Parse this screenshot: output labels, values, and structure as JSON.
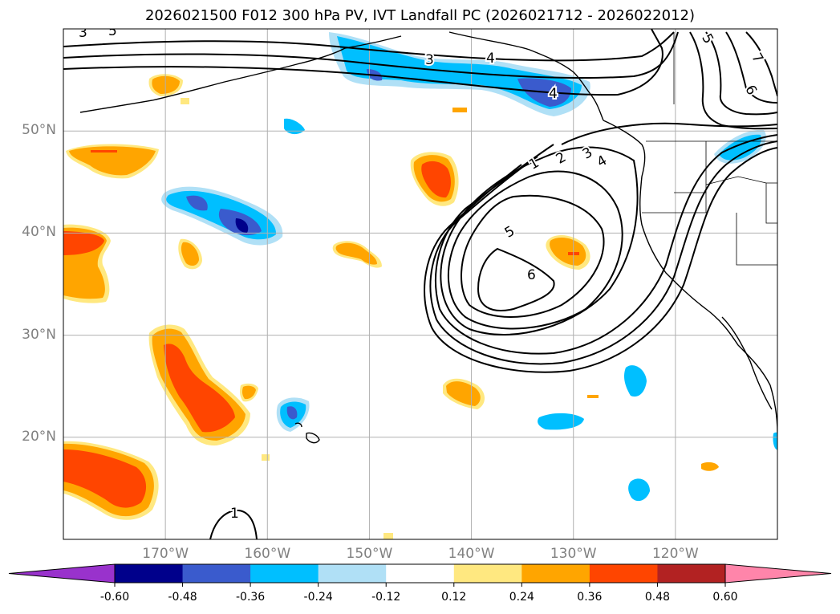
{
  "title": "2026021500 F012 300 hPa PV, IVT Landfall PC (2026021712 - 2026022012)",
  "map": {
    "projection": "PlateCarree",
    "extent_lon": [
      -180,
      -110
    ],
    "extent_lat": [
      10,
      60
    ],
    "lat_ticks": [
      {
        "value": 50,
        "label": "50°N"
      },
      {
        "value": 40,
        "label": "40°N"
      },
      {
        "value": 30,
        "label": "30°N"
      },
      {
        "value": 20,
        "label": "20°N"
      }
    ],
    "lon_ticks": [
      {
        "value": -170,
        "label": "170°W"
      },
      {
        "value": -160,
        "label": "160°W"
      },
      {
        "value": -150,
        "label": "150°W"
      },
      {
        "value": -140,
        "label": "140°W"
      },
      {
        "value": -130,
        "label": "130°W"
      },
      {
        "value": -120,
        "label": "120°W"
      }
    ],
    "gridlines": true,
    "contour_labels": [
      "1",
      "2",
      "3",
      "4",
      "5",
      "6",
      "7",
      "3",
      "4",
      "5",
      "6",
      "1",
      "3",
      "5",
      "4"
    ],
    "fill_field": "300 hPa PV anomaly",
    "line_field": "IVT Landfall PC"
  },
  "colorbar": {
    "orientation": "horizontal",
    "extend": "both",
    "levels": [
      "-0.60",
      "-0.48",
      "-0.36",
      "-0.24",
      "-0.12",
      "0.12",
      "0.24",
      "0.36",
      "0.48",
      "0.60"
    ],
    "colors": [
      "#9932cc",
      "#00008b",
      "#3a5bcd",
      "#00bfff",
      "#b0e0f6",
      "#ffffff",
      "#ffe880",
      "#ffa500",
      "#ff4500",
      "#b22222",
      "#ff85aa"
    ]
  },
  "colors": {
    "pos1": "#ffe880",
    "pos2": "#ffa500",
    "pos3": "#ff4500",
    "neg1": "#b0e0f6",
    "neg2": "#00bfff",
    "neg3": "#3a5bcd",
    "neg4": "#00008b",
    "grid": "#b0b0b0",
    "axis_label": "#808080"
  }
}
